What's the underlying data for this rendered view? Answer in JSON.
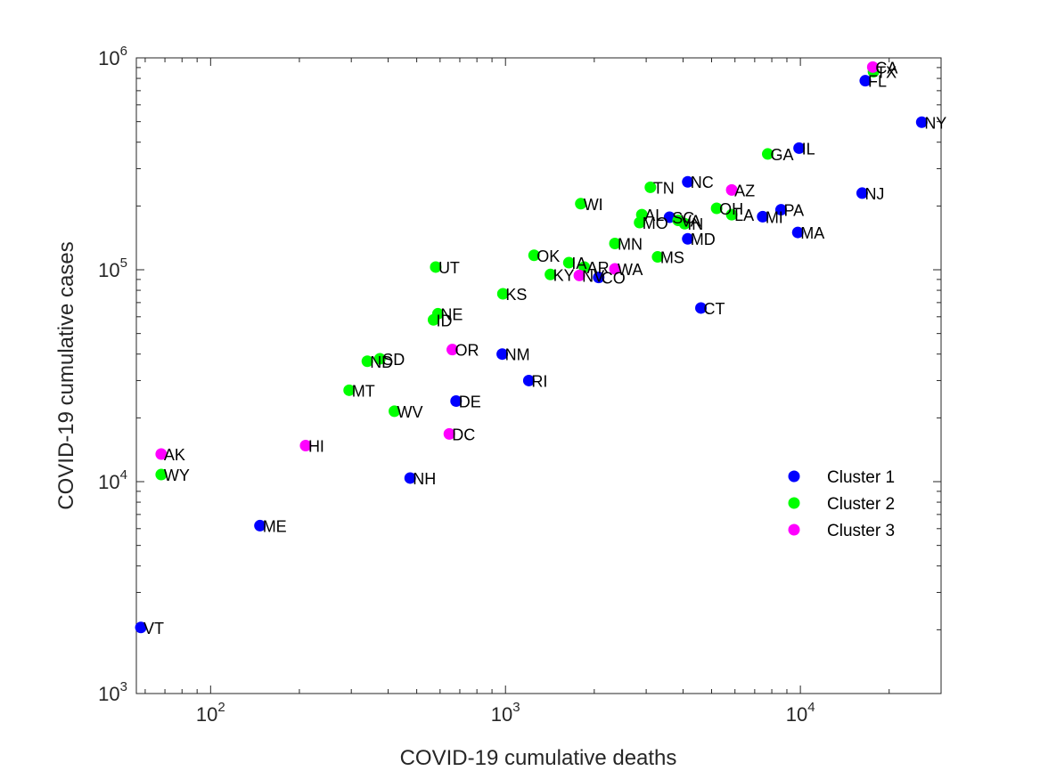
{
  "chart_data": {
    "type": "scatter",
    "xlabel": "COVID-19 cumulative deaths",
    "ylabel": "COVID-19 cumulative cases",
    "xscale": "log",
    "yscale": "log",
    "xlim": [
      56,
      30000
    ],
    "ylim": [
      1000,
      1000000
    ],
    "x_ticks": [
      {
        "value": 100,
        "base": "10",
        "exp": "2"
      },
      {
        "value": 1000,
        "base": "10",
        "exp": "3"
      },
      {
        "value": 10000,
        "base": "10",
        "exp": "4"
      }
    ],
    "y_ticks": [
      {
        "value": 1000,
        "base": "10",
        "exp": "3"
      },
      {
        "value": 10000,
        "base": "10",
        "exp": "4"
      },
      {
        "value": 100000,
        "base": "10",
        "exp": "5"
      },
      {
        "value": 1000000,
        "base": "10",
        "exp": "6"
      }
    ],
    "grid": false,
    "legend_position": "bottom-right",
    "colors": {
      "Cluster 1": "#0000ff",
      "Cluster 2": "#00ff00",
      "Cluster 3": "#ff00ff"
    },
    "series": [
      {
        "name": "Cluster 1",
        "points": [
          {
            "label": "VT",
            "x": 58,
            "y": 2050
          },
          {
            "label": "ME",
            "x": 147,
            "y": 6200
          },
          {
            "label": "NH",
            "x": 475,
            "y": 10400
          },
          {
            "label": "DE",
            "x": 680,
            "y": 24000
          },
          {
            "label": "NM",
            "x": 975,
            "y": 40000
          },
          {
            "label": "RI",
            "x": 1200,
            "y": 30000
          },
          {
            "label": "CO",
            "x": 2070,
            "y": 92000
          },
          {
            "label": "CT",
            "x": 4600,
            "y": 66000
          },
          {
            "label": "MD",
            "x": 4150,
            "y": 140000
          },
          {
            "label": "NC",
            "x": 4150,
            "y": 260000
          },
          {
            "label": "SC",
            "x": 3600,
            "y": 177000
          },
          {
            "label": "MI",
            "x": 7450,
            "y": 178000
          },
          {
            "label": "PA",
            "x": 8600,
            "y": 192000
          },
          {
            "label": "MA",
            "x": 9800,
            "y": 150000
          },
          {
            "label": "IL",
            "x": 9900,
            "y": 375000
          },
          {
            "label": "NJ",
            "x": 16200,
            "y": 230000
          },
          {
            "label": "FL",
            "x": 16600,
            "y": 780000
          },
          {
            "label": "NY",
            "x": 25800,
            "y": 497000
          }
        ]
      },
      {
        "name": "Cluster 2",
        "points": [
          {
            "label": "WY",
            "x": 68,
            "y": 10800
          },
          {
            "label": "MT",
            "x": 295,
            "y": 27000
          },
          {
            "label": "ND",
            "x": 340,
            "y": 37000
          },
          {
            "label": "SD",
            "x": 375,
            "y": 38000
          },
          {
            "label": "WV",
            "x": 420,
            "y": 21500
          },
          {
            "label": "ID",
            "x": 570,
            "y": 58000
          },
          {
            "label": "NE",
            "x": 590,
            "y": 62000
          },
          {
            "label": "UT",
            "x": 580,
            "y": 103000
          },
          {
            "label": "KS",
            "x": 980,
            "y": 77000
          },
          {
            "label": "OK",
            "x": 1250,
            "y": 117000
          },
          {
            "label": "KY",
            "x": 1420,
            "y": 95000
          },
          {
            "label": "IA",
            "x": 1640,
            "y": 108000
          },
          {
            "label": "AR",
            "x": 1850,
            "y": 103000
          },
          {
            "label": "WI",
            "x": 1800,
            "y": 205000
          },
          {
            "label": "MN",
            "x": 2350,
            "y": 133000
          },
          {
            "label": "AL",
            "x": 2900,
            "y": 182000
          },
          {
            "label": "MO",
            "x": 2850,
            "y": 167000
          },
          {
            "label": "TN",
            "x": 3100,
            "y": 245000
          },
          {
            "label": "MS",
            "x": 3280,
            "y": 115000
          },
          {
            "label": "VA",
            "x": 3850,
            "y": 171000
          },
          {
            "label": "IN",
            "x": 4050,
            "y": 165000
          },
          {
            "label": "OH",
            "x": 5200,
            "y": 195000
          },
          {
            "label": "LA",
            "x": 5850,
            "y": 182000
          },
          {
            "label": "GA",
            "x": 7750,
            "y": 352000
          },
          {
            "label": "TX",
            "x": 17700,
            "y": 860000
          }
        ]
      },
      {
        "name": "Cluster 3",
        "points": [
          {
            "label": "AK",
            "x": 68,
            "y": 13500
          },
          {
            "label": "HI",
            "x": 210,
            "y": 14800
          },
          {
            "label": "DC",
            "x": 645,
            "y": 16800
          },
          {
            "label": "OR",
            "x": 660,
            "y": 42000
          },
          {
            "label": "NV",
            "x": 1780,
            "y": 94000
          },
          {
            "label": "WA",
            "x": 2350,
            "y": 101000
          },
          {
            "label": "AZ",
            "x": 5850,
            "y": 238000
          },
          {
            "label": "CA",
            "x": 17600,
            "y": 905000
          }
        ]
      }
    ]
  }
}
